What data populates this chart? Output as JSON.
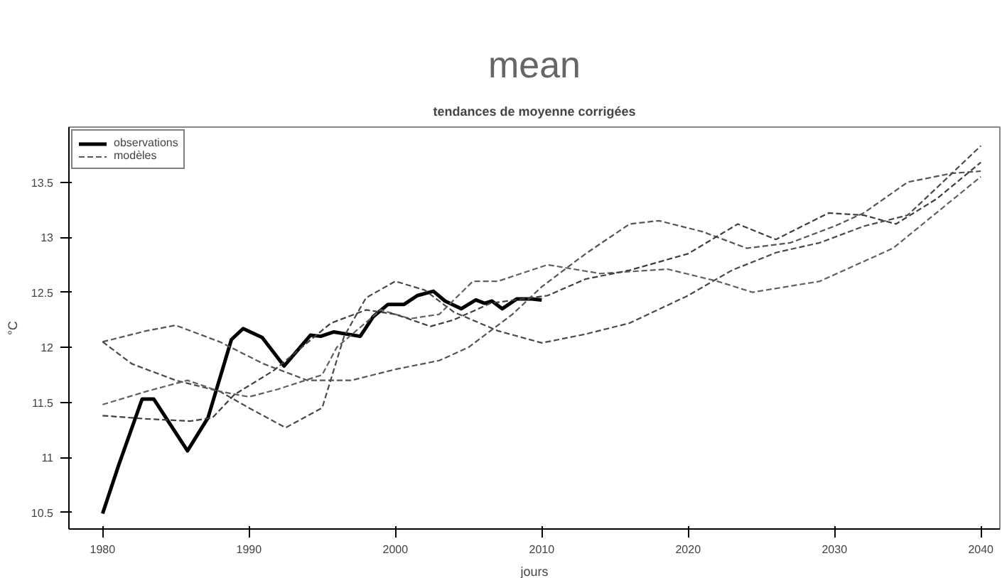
{
  "chart_data": {
    "type": "line",
    "title": "mean",
    "subtitle": "tendances de moyenne corrigées",
    "xlabel": "jours",
    "ylabel": "°C",
    "xlim": [
      1977.7,
      2041.3
    ],
    "ylim": [
      10.35,
      14.0
    ],
    "xticks": [
      1980,
      1990,
      2000,
      2010,
      2020,
      2030,
      2040
    ],
    "yticks": [
      10.5,
      11.0,
      11.5,
      12.0,
      12.5,
      13.0,
      13.5
    ],
    "grid": false,
    "legend": "top left",
    "marker": "none",
    "series": [
      {
        "name": "observations",
        "color": "#000000",
        "line_style": "solid",
        "x": [
          1980,
          1981.1,
          1982.7,
          1983.5,
          1985.8,
          1987.2,
          1988.8,
          1989.6,
          1990.9,
          1992.4,
          1994.2,
          1994.9,
          1995.8,
          1997.6,
          1998.5,
          1999.5,
          2000.6,
          2001.5,
          2002.6,
          2003.4,
          2004.5,
          2005.5,
          2006.1,
          2006.6,
          2007.3,
          2008.3,
          2009.3,
          2010
        ],
        "values": [
          10.49,
          10.93,
          11.53,
          11.53,
          11.06,
          11.36,
          12.07,
          12.17,
          12.09,
          11.83,
          12.11,
          12.1,
          12.14,
          12.1,
          12.28,
          12.39,
          12.39,
          12.47,
          12.51,
          12.42,
          12.35,
          12.43,
          12.4,
          12.42,
          12.35,
          12.44,
          12.44,
          12.43
        ]
      },
      {
        "name": "modèles",
        "color": "#555555",
        "line_style": "dashed",
        "x": [
          1980,
          1983,
          1985,
          1988,
          1991,
          1994,
          1997,
          2000,
          2003,
          2005,
          2008,
          2010,
          2013,
          2016,
          2018,
          2021,
          2024,
          2027,
          2030,
          2032,
          2035,
          2038,
          2040
        ],
        "values": [
          12.05,
          12.15,
          12.2,
          12.05,
          11.85,
          11.7,
          11.7,
          11.8,
          11.88,
          12.0,
          12.3,
          12.55,
          12.85,
          13.12,
          13.15,
          13.05,
          12.9,
          12.95,
          13.1,
          13.22,
          13.5,
          13.58,
          13.6
        ]
      },
      {
        "color": "#4a4a4a",
        "line_style": "dashed",
        "x": [
          1980,
          1982,
          1985,
          1988,
          1990,
          1992.5,
          1995,
          1996.5,
          1998,
          2000,
          2002,
          2004,
          2007,
          2010,
          2013,
          2016,
          2020,
          2023,
          2026,
          2029,
          2032,
          2035,
          2037,
          2040
        ],
        "values": [
          12.05,
          11.85,
          11.7,
          11.6,
          11.45,
          11.27,
          11.45,
          12.1,
          12.45,
          12.6,
          12.52,
          12.32,
          12.15,
          12.04,
          12.12,
          12.22,
          12.47,
          12.7,
          12.86,
          12.95,
          13.1,
          13.2,
          13.45,
          13.83
        ]
      },
      {
        "color": "#606060",
        "line_style": "dashed",
        "x": [
          1980,
          1983,
          1985.8,
          1988,
          1990,
          1992,
          1995,
          1996,
          1999,
          2001,
          2003,
          2005.3,
          2007,
          2010.4,
          2014,
          2018.6,
          2022,
          2024.4,
          2029,
          2034,
          2040
        ],
        "values": [
          11.48,
          11.6,
          11.7,
          11.6,
          11.55,
          11.62,
          11.75,
          12.0,
          12.34,
          12.26,
          12.3,
          12.6,
          12.6,
          12.75,
          12.67,
          12.71,
          12.6,
          12.5,
          12.6,
          12.9,
          13.55
        ]
      },
      {
        "color": "#3f3f3f",
        "line_style": "dashed",
        "x": [
          1980,
          1983,
          1986,
          1987.5,
          1989,
          1991.7,
          1995.6,
          1998,
          2000,
          2002.4,
          2004,
          2006.5,
          2010.4,
          2013,
          2016,
          2020,
          2023.4,
          2026,
          2029.6,
          2032,
          2034.2,
          2037,
          2040
        ],
        "values": [
          11.38,
          11.35,
          11.33,
          11.36,
          11.57,
          11.79,
          12.22,
          12.34,
          12.3,
          12.19,
          12.25,
          12.4,
          12.47,
          12.62,
          12.7,
          12.85,
          13.12,
          12.98,
          13.22,
          13.2,
          13.12,
          13.35,
          13.68
        ]
      }
    ]
  }
}
